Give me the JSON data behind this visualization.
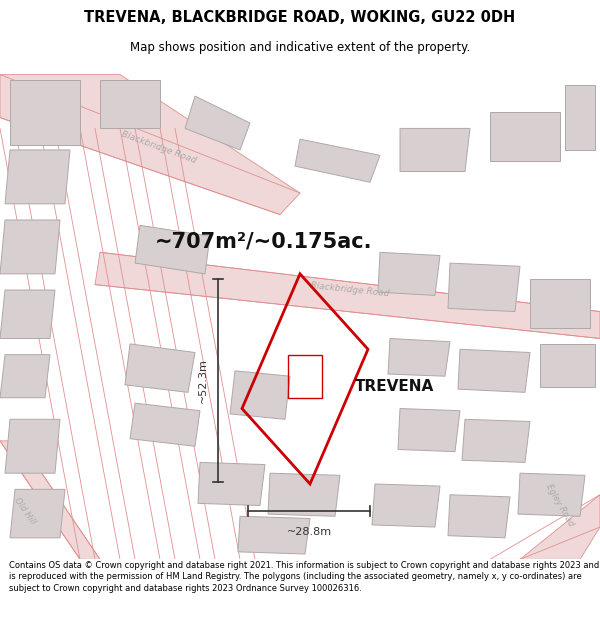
{
  "title": "TREVENA, BLACKBRIDGE ROAD, WOKING, GU22 0DH",
  "subtitle": "Map shows position and indicative extent of the property.",
  "area_text": "~707m²/~0.175ac.",
  "property_label": "TREVENA",
  "dim1_label": "~52.3m",
  "dim2_label": "~28.8m",
  "footer": "Contains OS data © Crown copyright and database right 2021. This information is subject to Crown copyright and database rights 2023 and is reproduced with the permission of HM Land Registry. The polygons (including the associated geometry, namely x, y co-ordinates) are subject to Crown copyright and database rights 2023 Ordnance Survey 100026316.",
  "map_bg": "#f5f0f0",
  "road_fill": "#f0d8d8",
  "road_line": "#e09090",
  "building_fill": "#d8d0d0",
  "building_edge": "#b0a8a8",
  "property_edge": "#cc0000",
  "white_bg": "#ffffff",
  "road_label_color": "#aaaaaa",
  "dim_color": "#333333",
  "text_color": "#111111"
}
